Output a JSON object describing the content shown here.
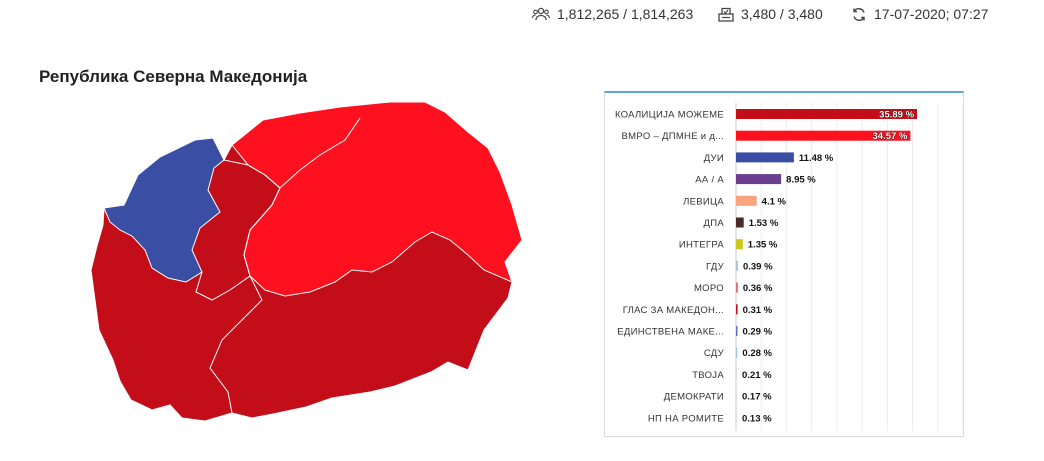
{
  "header": {
    "voters_text": "1,812,265 / 1,814,263",
    "stations_text": "3,480 / 3,480",
    "updated_text": "17-07-2020; 07:27"
  },
  "page_title": "Република Северна Македонија",
  "colors": {
    "party_red": "#c30d18",
    "party_light_red": "#ff101f",
    "party_blue": "#3a4fa3",
    "accent": "#5aa6db"
  },
  "chart_data": {
    "type": "bar",
    "orientation": "horizontal",
    "categories": [
      "КОАЛИЦИЈА МОЖЕМЕ",
      "ВМРО – ДПМНЕ и д...",
      "ДУИ",
      "АА / А",
      "ЛЕВИЦА",
      "ДПА",
      "ИНТЕГРА",
      "ГДУ",
      "МОРО",
      "ГЛАС ЗА МАКЕДОН...",
      "ЕДИНСТВЕНА МАКЕ...",
      "СДУ",
      "ТВОЈА",
      "ДЕМОКРАТИ",
      "НП НА РОМИТЕ"
    ],
    "values": [
      35.89,
      34.57,
      11.48,
      8.95,
      4.1,
      1.53,
      1.35,
      0.39,
      0.36,
      0.31,
      0.29,
      0.28,
      0.21,
      0.17,
      0.13
    ],
    "labels": [
      "35.89 %",
      "34.57 %",
      "11.48 %",
      "8.95 %",
      "4.1 %",
      "1.53 %",
      "1.35 %",
      "0.39 %",
      "0.36 %",
      "0.31 %",
      "0.29 %",
      "0.28 %",
      "0.21 %",
      "0.17 %",
      "0.13 %"
    ],
    "colors": [
      "#c30d18",
      "#ff101f",
      "#3a4fa3",
      "#6a3d8f",
      "#f7a47f",
      "#4a2a2a",
      "#c8c81e",
      "#a9c3e8",
      "#e26a6a",
      "#c30d18",
      "#5a6fc0",
      "#a9c3e8",
      "#dddddd",
      "#dddddd",
      "#dddddd"
    ],
    "xlim": [
      0,
      45
    ],
    "grid": true,
    "legend": "none"
  }
}
